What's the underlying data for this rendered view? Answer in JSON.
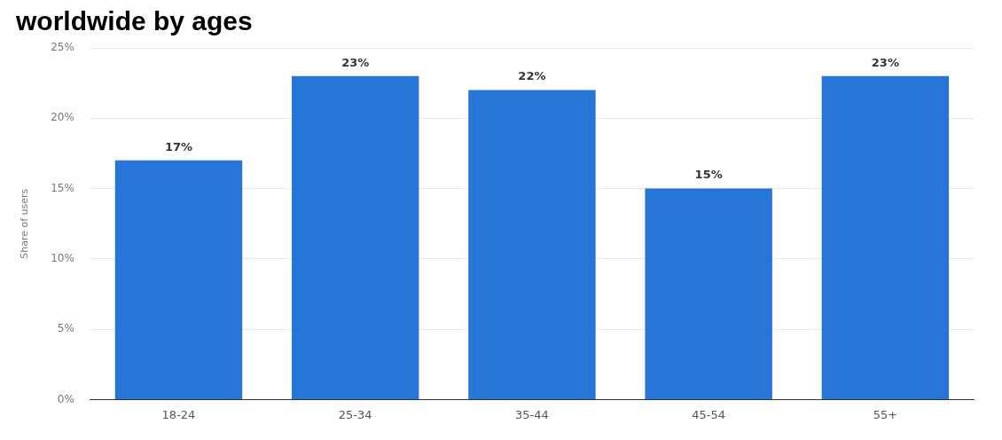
{
  "chart_data": {
    "type": "bar",
    "title": "worldwide by ages",
    "ylabel": "Share of users",
    "categories": [
      "18-24",
      "25-34",
      "35-44",
      "45-54",
      "55+"
    ],
    "values": [
      17,
      23,
      22,
      15,
      23
    ],
    "color": "#2875d8",
    "ylim": [
      0,
      25
    ],
    "yticks": [
      {
        "value": 0,
        "label": "0%"
      },
      {
        "value": 5,
        "label": "5%"
      },
      {
        "value": 10,
        "label": "10%"
      },
      {
        "value": 15,
        "label": "15%"
      },
      {
        "value": 20,
        "label": "20%"
      },
      {
        "value": 25,
        "label": "25%"
      }
    ],
    "value_labels": [
      "17%",
      "23%",
      "22%",
      "15%",
      "23%"
    ],
    "grid": "y"
  }
}
